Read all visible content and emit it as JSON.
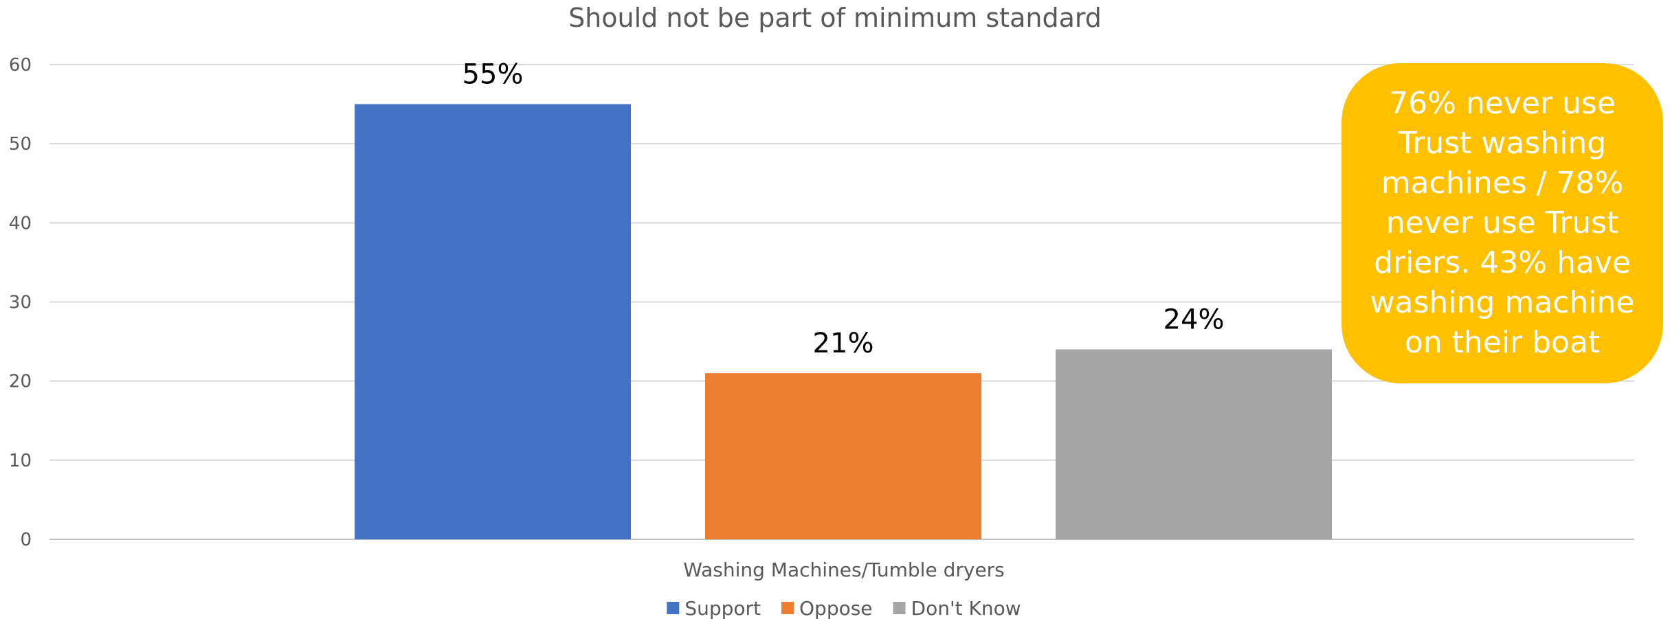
{
  "chart_data": {
    "type": "bar",
    "title": "Should not be part of minimum standard",
    "categories": [
      "Washing Machines/Tumble dryers"
    ],
    "series": [
      {
        "name": "Support",
        "values": [
          55
        ],
        "label": "55%",
        "color": "#4472C4"
      },
      {
        "name": "Oppose",
        "values": [
          21
        ],
        "label": "21%",
        "color": "#ED7D31"
      },
      {
        "name": "Don't Know",
        "values": [
          24
        ],
        "label": "24%",
        "color": "#A5A5A5"
      }
    ],
    "ylim": [
      0,
      60
    ],
    "yticks": [
      0,
      10,
      20,
      30,
      40,
      50,
      60
    ],
    "grid": true,
    "legend": "bottom-center"
  },
  "callout": {
    "text": "76% never use Trust washing machines / 78% never use Trust driers. 43% have washing machine on their boat",
    "background": "#FFC000",
    "text_color": "#FFFFFF"
  }
}
